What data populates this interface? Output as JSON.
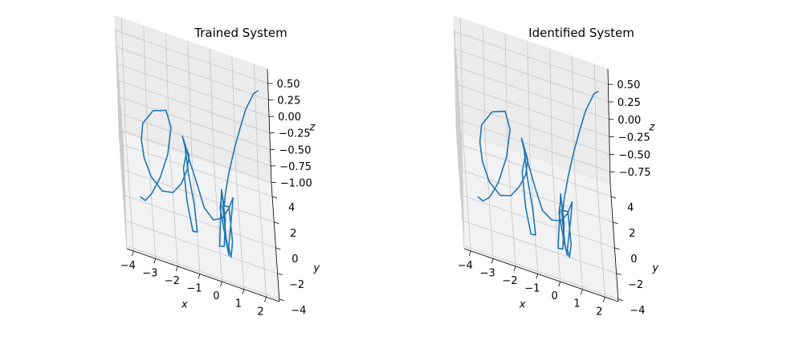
{
  "chart_data": [
    {
      "type": "line3d",
      "title": "Trained System",
      "xlabel": "x",
      "ylabel": "y",
      "zlabel": "z",
      "xlim": [
        -4.3,
        2.6
      ],
      "ylim": [
        -4.2,
        5.0
      ],
      "zlim": [
        -1.02,
        0.72
      ],
      "xticks": [
        -4,
        -3,
        -2,
        -1,
        0,
        1,
        2
      ],
      "yticks": [
        -4,
        -2,
        0,
        2,
        4
      ],
      "zticks": [
        -1.0,
        -0.75,
        -0.5,
        -0.25,
        0.0,
        0.25,
        0.5
      ],
      "xtick_labels": [
        "−4",
        "−3",
        "−2",
        "−1",
        "0",
        "1",
        "2"
      ],
      "ytick_labels": [
        "−4",
        "−2",
        "0",
        "2",
        "4"
      ],
      "ztick_labels": [
        "−1.00",
        "−0.75",
        "−0.50",
        "−0.25",
        "0.00",
        "0.25",
        "0.50"
      ],
      "grid": true,
      "series": [
        {
          "color": "#1f77b4",
          "x": [
            2.1,
            1.9,
            1.5,
            1.2,
            0.9,
            0.6,
            0.4,
            0.3,
            0.25,
            0.2,
            0.1,
            0.0,
            0.2,
            0.3,
            0.2,
            0.1,
            0.3,
            0.4,
            0.3,
            0.2,
            0.5,
            0.6,
            0.5,
            0.4,
            0.6,
            0.7,
            0.5,
            0.2,
            -0.2,
            -0.6,
            -0.9,
            -1.2,
            -1.4,
            -1.5,
            -1.4,
            -1.3,
            -1.1,
            -1.0,
            -1.2,
            -1.4,
            -1.5,
            -1.3,
            -1.2,
            -1.3,
            -1.6,
            -2.0,
            -2.5,
            -3.0,
            -3.3,
            -3.4,
            -3.3,
            -2.8,
            -2.2,
            -2.0,
            -2.2,
            -2.6,
            -3.0,
            -3.3,
            -3.5
          ],
          "y": [
            3.5,
            3.2,
            2.6,
            2.0,
            1.5,
            1.0,
            0.6,
            0.2,
            -0.2,
            -0.6,
            -1.2,
            -1.8,
            -2.2,
            -1.8,
            -1.2,
            -0.8,
            -1.4,
            -2.0,
            -2.3,
            -1.6,
            -1.0,
            -1.6,
            -2.1,
            -2.4,
            -1.8,
            -1.2,
            -0.6,
            0.0,
            0.4,
            0.6,
            0.5,
            0.3,
            0.0,
            -0.3,
            -0.6,
            -1.0,
            -1.4,
            -1.8,
            -1.6,
            -1.0,
            -0.2,
            0.6,
            1.2,
            1.6,
            1.6,
            1.2,
            0.5,
            -0.2,
            -0.7,
            -0.9,
            -0.6,
            -0.1,
            0.3,
            0.1,
            -0.3,
            -0.6,
            -0.5,
            -0.2,
            0.2
          ],
          "z": [
            0.62,
            0.62,
            0.45,
            0.25,
            0.0,
            -0.3,
            -0.55,
            -0.7,
            -0.5,
            -0.3,
            -0.6,
            -0.95,
            -0.85,
            -0.5,
            -0.25,
            -0.55,
            -0.9,
            -1.0,
            -0.7,
            -0.35,
            -0.45,
            -0.85,
            -1.0,
            -0.8,
            -0.4,
            -0.25,
            -0.55,
            -0.85,
            -1.0,
            -0.9,
            -0.55,
            -0.2,
            0.1,
            0.25,
            0.15,
            -0.15,
            -0.5,
            -0.85,
            -0.9,
            -0.6,
            -0.25,
            -0.1,
            -0.3,
            -0.6,
            -0.85,
            -0.95,
            -0.85,
            -0.55,
            -0.2,
            0.1,
            0.3,
            0.45,
            0.45,
            0.25,
            -0.1,
            -0.45,
            -0.75,
            -0.95,
            -1.0
          ]
        }
      ]
    },
    {
      "type": "line3d",
      "title": "Identified System",
      "xlabel": "x",
      "ylabel": "y",
      "zlabel": "z",
      "xlim": [
        -4.3,
        2.6
      ],
      "ylim": [
        -4.2,
        5.0
      ],
      "zlim": [
        -0.92,
        0.72
      ],
      "xticks": [
        -4,
        -3,
        -2,
        -1,
        0,
        1,
        2
      ],
      "yticks": [
        -4,
        -2,
        0,
        2,
        4
      ],
      "zticks": [
        -0.75,
        -0.5,
        -0.25,
        0.0,
        0.25,
        0.5
      ],
      "xtick_labels": [
        "−4",
        "−3",
        "−2",
        "−1",
        "0",
        "1",
        "2"
      ],
      "ytick_labels": [
        "−4",
        "−2",
        "0",
        "2",
        "4"
      ],
      "ztick_labels": [
        "−0.75",
        "−0.50",
        "−0.25",
        "0.00",
        "0.25",
        "0.50"
      ],
      "grid": true,
      "series": [
        {
          "color": "#1f77b4",
          "x": [
            2.1,
            1.9,
            1.5,
            1.2,
            0.9,
            0.6,
            0.4,
            0.3,
            0.25,
            0.2,
            0.1,
            0.0,
            0.2,
            0.3,
            0.2,
            0.1,
            0.3,
            0.4,
            0.3,
            0.2,
            0.5,
            0.6,
            0.5,
            0.4,
            0.6,
            0.7,
            0.5,
            0.2,
            -0.2,
            -0.6,
            -0.9,
            -1.2,
            -1.4,
            -1.5,
            -1.4,
            -1.3,
            -1.1,
            -1.0,
            -1.2,
            -1.4,
            -1.5,
            -1.3,
            -1.2,
            -1.3,
            -1.6,
            -2.0,
            -2.5,
            -3.0,
            -3.3,
            -3.4,
            -3.3,
            -2.8,
            -2.2,
            -2.0,
            -2.2,
            -2.6,
            -3.0,
            -3.3,
            -3.5
          ],
          "y": [
            3.5,
            3.2,
            2.6,
            2.0,
            1.5,
            1.0,
            0.6,
            0.2,
            -0.2,
            -0.6,
            -1.2,
            -1.8,
            -2.2,
            -1.8,
            -1.2,
            -0.8,
            -1.4,
            -2.0,
            -2.3,
            -1.6,
            -1.0,
            -1.6,
            -2.1,
            -2.4,
            -1.8,
            -1.2,
            -0.6,
            0.0,
            0.4,
            0.6,
            0.5,
            0.3,
            0.0,
            -0.3,
            -0.6,
            -1.0,
            -1.4,
            -1.8,
            -1.6,
            -1.0,
            -0.2,
            0.6,
            1.2,
            1.6,
            1.6,
            1.2,
            0.5,
            -0.2,
            -0.7,
            -0.9,
            -0.6,
            -0.1,
            0.3,
            0.1,
            -0.3,
            -0.6,
            -0.5,
            -0.2,
            0.2
          ],
          "z": [
            0.62,
            0.62,
            0.45,
            0.25,
            0.0,
            -0.3,
            -0.55,
            -0.7,
            -0.5,
            -0.3,
            -0.6,
            -0.88,
            -0.8,
            -0.5,
            -0.25,
            -0.55,
            -0.85,
            -0.9,
            -0.7,
            -0.35,
            -0.45,
            -0.8,
            -0.9,
            -0.75,
            -0.4,
            -0.25,
            -0.55,
            -0.8,
            -0.9,
            -0.85,
            -0.55,
            -0.2,
            0.1,
            0.25,
            0.15,
            -0.15,
            -0.5,
            -0.8,
            -0.85,
            -0.6,
            -0.25,
            -0.1,
            -0.3,
            -0.6,
            -0.8,
            -0.9,
            -0.82,
            -0.55,
            -0.2,
            0.1,
            0.3,
            0.45,
            0.45,
            0.25,
            -0.1,
            -0.45,
            -0.72,
            -0.86,
            -0.9
          ]
        }
      ]
    }
  ]
}
